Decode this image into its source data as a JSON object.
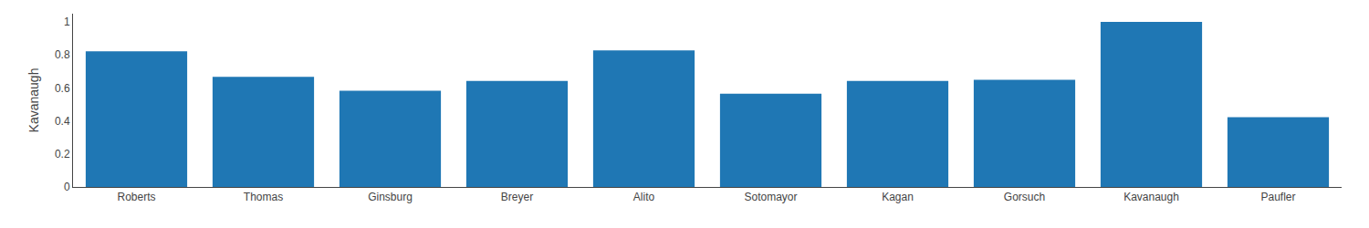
{
  "chart_data": {
    "type": "bar",
    "ylabel": "Kavanaugh",
    "categories": [
      "Roberts",
      "Thomas",
      "Ginsburg",
      "Breyer",
      "Alito",
      "Sotomayor",
      "Kagan",
      "Gorsuch",
      "Kavanaugh",
      "Paufler"
    ],
    "values": [
      0.8214285714285714,
      0.6666666666666666,
      0.5833333333333334,
      0.6428571428571429,
      0.8273809523809523,
      0.5654761904761905,
      0.6428571428571429,
      0.6488095238095238,
      1.0,
      0.4226190476190476
    ],
    "color": "#1f77b4",
    "ylim": [
      0.0,
      1.05
    ],
    "yticks": [
      0.0,
      0.2,
      0.4,
      0.6,
      0.8,
      1.0
    ],
    "grid": false
  }
}
